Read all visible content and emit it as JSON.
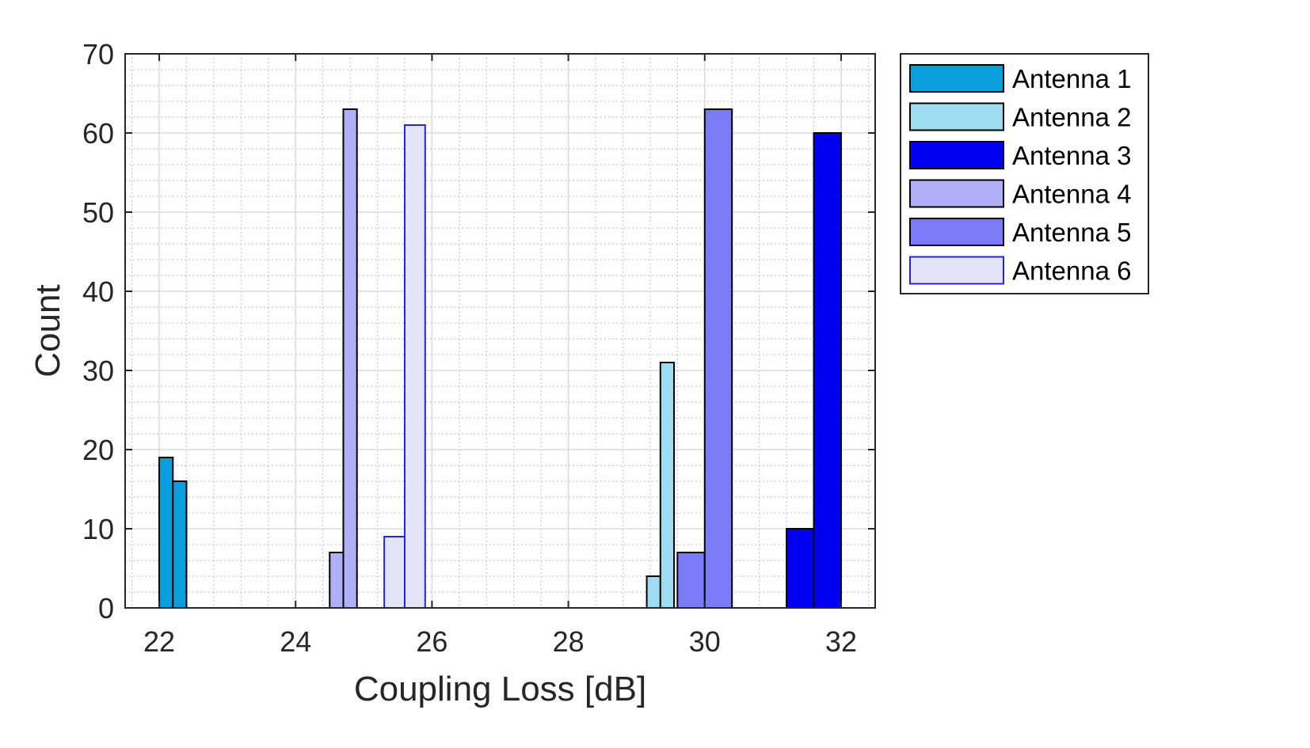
{
  "chart_data": {
    "type": "bar",
    "title": "",
    "xlabel": "Coupling Loss [dB]",
    "ylabel": "Count",
    "xlim": [
      21.5,
      32.5
    ],
    "ylim": [
      0,
      70
    ],
    "xticks": [
      22,
      24,
      26,
      28,
      30,
      32
    ],
    "yticks": [
      0,
      10,
      20,
      30,
      40,
      50,
      60,
      70
    ],
    "grid": true,
    "minor_grid": true,
    "legend_position": "outside-right",
    "series": [
      {
        "name": "Antenna 1",
        "color": "#0a9fdc",
        "edge": "#000000",
        "bins": [
          {
            "x0": 22.0,
            "x1": 22.2,
            "value": 19
          },
          {
            "x0": 22.2,
            "x1": 22.4,
            "value": 16
          }
        ]
      },
      {
        "name": "Antenna 2",
        "color": "#9edcf2",
        "edge": "#000000",
        "bins": [
          {
            "x0": 29.15,
            "x1": 29.35,
            "value": 4
          },
          {
            "x0": 29.35,
            "x1": 29.55,
            "value": 31
          }
        ]
      },
      {
        "name": "Antenna 3",
        "color": "#0000f0",
        "edge": "#000000",
        "bins": [
          {
            "x0": 31.2,
            "x1": 31.6,
            "value": 10
          },
          {
            "x0": 31.6,
            "x1": 32.0,
            "value": 60
          }
        ]
      },
      {
        "name": "Antenna 4",
        "color": "#b0b0f8",
        "edge": "#000000",
        "bins": [
          {
            "x0": 24.5,
            "x1": 24.7,
            "value": 7
          },
          {
            "x0": 24.7,
            "x1": 24.9,
            "value": 63
          }
        ]
      },
      {
        "name": "Antenna 5",
        "color": "#7b7bf8",
        "edge": "#000000",
        "bins": [
          {
            "x0": 29.6,
            "x1": 30.0,
            "value": 7
          },
          {
            "x0": 30.0,
            "x1": 30.4,
            "value": 63
          }
        ]
      },
      {
        "name": "Antenna 6",
        "color": "#e4e4f8",
        "edge": "#2323e0",
        "bins": [
          {
            "x0": 25.3,
            "x1": 25.6,
            "value": 9
          },
          {
            "x0": 25.6,
            "x1": 25.9,
            "value": 61
          }
        ]
      }
    ]
  }
}
